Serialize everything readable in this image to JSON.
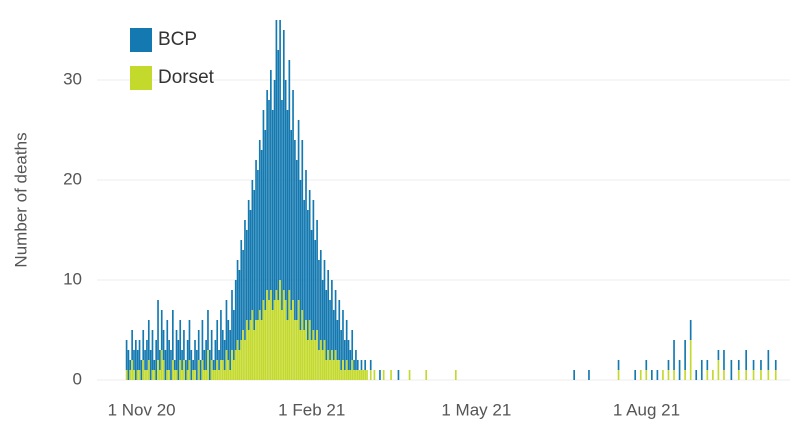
{
  "chart_data": {
    "type": "stacked_bar",
    "y_label": "Number of deaths",
    "x": [
      "2020-11-01",
      "2020-11-02",
      "2020-11-03",
      "2020-11-04",
      "2020-11-05",
      "2020-11-06",
      "2020-11-07",
      "2020-11-08",
      "2020-11-09",
      "2020-11-10",
      "2020-11-11",
      "2020-11-12",
      "2020-11-13",
      "2020-11-14",
      "2020-11-15",
      "2020-11-16",
      "2020-11-17",
      "2020-11-18",
      "2020-11-19",
      "2020-11-20",
      "2020-11-21",
      "2020-11-22",
      "2020-11-23",
      "2020-11-24",
      "2020-11-25",
      "2020-11-26",
      "2020-11-27",
      "2020-11-28",
      "2020-11-29",
      "2020-11-30",
      "2020-12-01",
      "2020-12-02",
      "2020-12-03",
      "2020-12-04",
      "2020-12-05",
      "2020-12-06",
      "2020-12-07",
      "2020-12-08",
      "2020-12-09",
      "2020-12-10",
      "2020-12-11",
      "2020-12-12",
      "2020-12-13",
      "2020-12-14",
      "2020-12-15",
      "2020-12-16",
      "2020-12-17",
      "2020-12-18",
      "2020-12-19",
      "2020-12-20",
      "2020-12-21",
      "2020-12-22",
      "2020-12-23",
      "2020-12-24",
      "2020-12-25",
      "2020-12-26",
      "2020-12-27",
      "2020-12-28",
      "2020-12-29",
      "2020-12-30",
      "2020-12-31",
      "2021-01-01",
      "2021-01-02",
      "2021-01-03",
      "2021-01-04",
      "2021-01-05",
      "2021-01-06",
      "2021-01-07",
      "2021-01-08",
      "2021-01-09",
      "2021-01-10",
      "2021-01-11",
      "2021-01-12",
      "2021-01-13",
      "2021-01-14",
      "2021-01-15",
      "2021-01-16",
      "2021-01-17",
      "2021-01-18",
      "2021-01-19",
      "2021-01-20",
      "2021-01-21",
      "2021-01-22",
      "2021-01-23",
      "2021-01-24",
      "2021-01-25",
      "2021-01-26",
      "2021-01-27",
      "2021-01-28",
      "2021-01-29",
      "2021-01-30",
      "2021-01-31",
      "2021-02-01",
      "2021-02-02",
      "2021-02-03",
      "2021-02-04",
      "2021-02-05",
      "2021-02-06",
      "2021-02-07",
      "2021-02-08",
      "2021-02-09",
      "2021-02-10",
      "2021-02-11",
      "2021-02-12",
      "2021-02-13",
      "2021-02-14",
      "2021-02-15",
      "2021-02-16",
      "2021-02-17",
      "2021-02-18",
      "2021-02-19",
      "2021-02-20",
      "2021-02-21",
      "2021-02-22",
      "2021-02-23",
      "2021-02-24",
      "2021-02-25",
      "2021-02-26",
      "2021-02-27",
      "2021-02-28",
      "2021-03-01",
      "2021-03-02",
      "2021-03-03",
      "2021-03-04",
      "2021-03-05",
      "2021-03-06",
      "2021-03-07",
      "2021-03-08",
      "2021-03-09",
      "2021-03-10",
      "2021-03-11",
      "2021-03-12",
      "2021-03-13",
      "2021-03-14",
      "2021-03-15",
      "2021-03-16",
      "2021-03-17",
      "2021-03-18",
      "2021-03-19",
      "2021-03-20",
      "2021-03-24",
      "2021-03-28",
      "2021-04-03",
      "2021-04-12",
      "2021-04-28",
      "2021-07-01",
      "2021-07-09",
      "2021-07-25",
      "2021-08-03",
      "2021-08-06",
      "2021-08-09",
      "2021-08-12",
      "2021-08-15",
      "2021-08-18",
      "2021-08-21",
      "2021-08-24",
      "2021-08-27",
      "2021-08-30",
      "2021-09-02",
      "2021-09-05",
      "2021-09-08",
      "2021-09-11",
      "2021-09-14",
      "2021-09-17",
      "2021-09-20",
      "2021-09-24",
      "2021-09-28",
      "2021-10-02",
      "2021-10-06",
      "2021-10-10",
      "2021-10-14",
      "2021-10-18"
    ],
    "series": [
      {
        "name": "Dorset",
        "color": "#c3d92c",
        "values": [
          1,
          0,
          1,
          2,
          1,
          0,
          1,
          1,
          0,
          2,
          1,
          1,
          2,
          0,
          1,
          1,
          0,
          2,
          1,
          3,
          2,
          0,
          1,
          1,
          0,
          2,
          1,
          1,
          0,
          2,
          1,
          2,
          0,
          1,
          2,
          0,
          1,
          1,
          0,
          2,
          0,
          2,
          1,
          1,
          3,
          0,
          2,
          1,
          1,
          2,
          1,
          2,
          2,
          1,
          3,
          2,
          1,
          3,
          2,
          3,
          4,
          3,
          4,
          5,
          4,
          6,
          5,
          6,
          7,
          5,
          6,
          6,
          7,
          6,
          8,
          7,
          9,
          8,
          9,
          7,
          8,
          9,
          8,
          10,
          7,
          9,
          8,
          6,
          9,
          7,
          8,
          6,
          6,
          8,
          5,
          7,
          5,
          6,
          4,
          6,
          4,
          5,
          4,
          5,
          3,
          4,
          3,
          4,
          2,
          3,
          2,
          3,
          2,
          3,
          2,
          2,
          1,
          2,
          1,
          2,
          1,
          1,
          2,
          1,
          1,
          1,
          1,
          1,
          1,
          1,
          1,
          0,
          1,
          0,
          1,
          0,
          0,
          0,
          0,
          1,
          1,
          0,
          1,
          1,
          1,
          0,
          0,
          1,
          0,
          1,
          1,
          0,
          0,
          1,
          1,
          1,
          0,
          1,
          4,
          0,
          0,
          1,
          1,
          2,
          1,
          0,
          1,
          1,
          1,
          1,
          1,
          1
        ]
      },
      {
        "name": "BCP",
        "color": "#1479b0",
        "values": [
          3,
          3,
          1,
          3,
          2,
          4,
          2,
          3,
          2,
          3,
          2,
          3,
          4,
          3,
          4,
          1,
          4,
          6,
          2,
          4,
          3,
          3,
          5,
          3,
          3,
          5,
          1,
          4,
          4,
          4,
          2,
          3,
          2,
          3,
          4,
          3,
          1,
          3,
          3,
          3,
          2,
          4,
          2,
          3,
          4,
          3,
          3,
          1,
          3,
          4,
          2,
          5,
          3,
          3,
          5,
          4,
          4,
          6,
          5,
          7,
          8,
          8,
          10,
          8,
          12,
          9,
          13,
          11,
          13,
          14,
          16,
          15,
          17,
          17,
          19,
          18,
          20,
          20,
          22,
          20,
          22,
          27,
          25,
          26,
          21,
          26,
          22,
          21,
          23,
          18,
          21,
          18,
          16,
          18,
          15,
          17,
          13,
          15,
          13,
          13,
          11,
          13,
          10,
          11,
          9,
          9,
          7,
          8,
          7,
          8,
          6,
          7,
          5,
          6,
          4,
          6,
          4,
          5,
          3,
          4,
          3,
          2,
          3,
          1,
          2,
          1,
          0,
          1,
          0,
          1,
          0,
          0,
          1,
          0,
          0,
          0,
          0,
          1,
          0,
          0,
          0,
          1,
          0,
          0,
          0,
          1,
          1,
          1,
          1,
          0,
          1,
          1,
          1,
          0,
          1,
          3,
          2,
          3,
          2,
          1,
          2,
          1,
          0,
          1,
          2,
          2,
          1,
          2,
          1,
          1,
          2,
          1
        ]
      }
    ],
    "xlim": [
      "2020-10-16",
      "2021-10-23"
    ],
    "xticks": [
      {
        "value": "2020-11-01",
        "label": "1 Nov 20"
      },
      {
        "value": "2021-02-01",
        "label": "1 Feb 21"
      },
      {
        "value": "2021-05-01",
        "label": "1 May 21"
      },
      {
        "value": "2021-08-01",
        "label": "1 Aug 21"
      }
    ],
    "ylim": [
      0,
      36.5
    ],
    "yticks": [
      0,
      10,
      20,
      30
    ],
    "grid": true,
    "legend": "top-left"
  }
}
